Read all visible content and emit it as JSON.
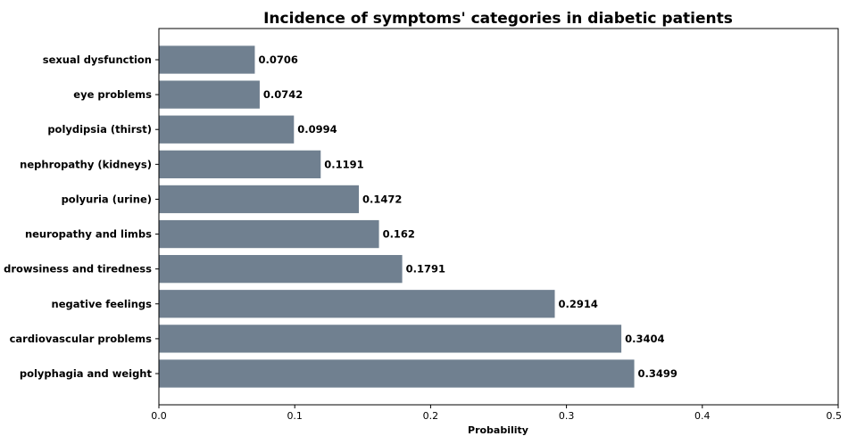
{
  "chart_data": {
    "type": "bar",
    "orientation": "horizontal",
    "title": "Incidence of symptoms' categories in diabetic patients",
    "xlabel": "Probability",
    "ylabel": "",
    "xlim": [
      0,
      0.5
    ],
    "xticks": [
      "0.0",
      "0.1",
      "0.2",
      "0.3",
      "0.4",
      "0.5"
    ],
    "xtick_values": [
      0,
      0.1,
      0.2,
      0.3,
      0.4,
      0.5
    ],
    "grid": false,
    "bar_color": "#708090",
    "categories": [
      "sexual dysfunction",
      "eye problems",
      "polydipsia (thirst)",
      "nephropathy (kidneys)",
      "polyuria (urine)",
      "neuropathy and limbs",
      "drowsiness and tiredness",
      "negative feelings",
      "cardiovascular problems",
      "polyphagia and weight"
    ],
    "values": [
      0.0706,
      0.0742,
      0.0994,
      0.1191,
      0.1472,
      0.162,
      0.1791,
      0.2914,
      0.3404,
      0.3499
    ],
    "value_labels": [
      "0.0706",
      "0.0742",
      "0.0994",
      "0.1191",
      "0.1472",
      "0.162",
      "0.1791",
      "0.2914",
      "0.3404",
      "0.3499"
    ]
  }
}
